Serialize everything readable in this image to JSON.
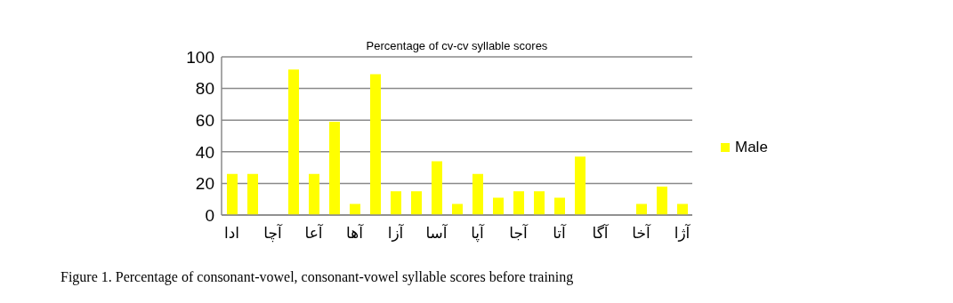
{
  "chart_data": {
    "type": "bar",
    "title": "Percentage of cv-cv syllable scores",
    "categories": [
      "ادا",
      null,
      "آچا",
      null,
      "آعا",
      null,
      "آها",
      null,
      "آزا",
      null,
      "آسا",
      null,
      "آپا",
      null,
      "آجا",
      null,
      "آتا",
      null,
      "آگا",
      null,
      "آخا",
      null,
      "آژا"
    ],
    "series": [
      {
        "name": "Male",
        "color": "#ffff00",
        "values": [
          26,
          26,
          0,
          92,
          26,
          59,
          7,
          89,
          15,
          15,
          34,
          7,
          26,
          11,
          15,
          15,
          11,
          37,
          0,
          0,
          7,
          18,
          7
        ]
      }
    ],
    "ylim": [
      0,
      100
    ],
    "yticks": [
      0,
      20,
      40,
      60,
      80,
      100
    ],
    "grid": "y",
    "legend": "right",
    "annotations": [
      "Figure 1. Percentage of consonant-vowel, consonant-vowel syllable scores before training"
    ]
  }
}
